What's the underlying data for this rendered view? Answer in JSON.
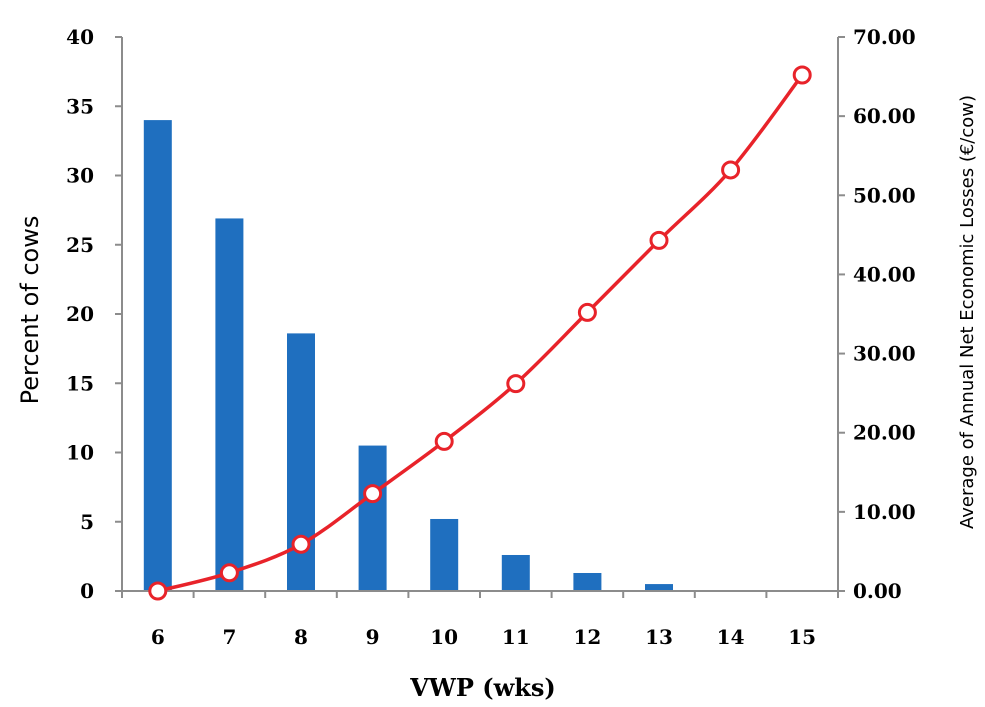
{
  "chart_data": {
    "type": "bar",
    "categories": [
      "6",
      "7",
      "8",
      "9",
      "10",
      "11",
      "12",
      "13",
      "14",
      "15"
    ],
    "series": [
      {
        "type": "bar",
        "axis": "left",
        "values": [
          34,
          26.9,
          18.6,
          10.5,
          5.2,
          2.6,
          1.3,
          0.5,
          0,
          0
        ]
      },
      {
        "type": "line",
        "axis": "right",
        "values": [
          0.0,
          2.3,
          5.9,
          12.3,
          18.9,
          26.2,
          35.2,
          44.3,
          53.2,
          65.2
        ]
      }
    ],
    "xlabel": "VWP (wks)",
    "ylabel": "Percent of cows",
    "y2label": "Average of Annual  Net  Economic  Losses (€/cow)",
    "ylim": [
      0,
      40
    ],
    "y2lim": [
      0,
      70
    ],
    "yticks": [
      "0",
      "5",
      "10",
      "15",
      "20",
      "25",
      "30",
      "35",
      "40"
    ],
    "y2ticks": [
      "0.00",
      "10.00",
      "20.00",
      "30.00",
      "40.00",
      "50.00",
      "60.00",
      "70.00"
    ],
    "grid": false,
    "colors": {
      "bar": "#1f6fbf",
      "line": "#e8232a",
      "marker_fill": "#ffffff",
      "axis": "#8c8c8c"
    }
  }
}
